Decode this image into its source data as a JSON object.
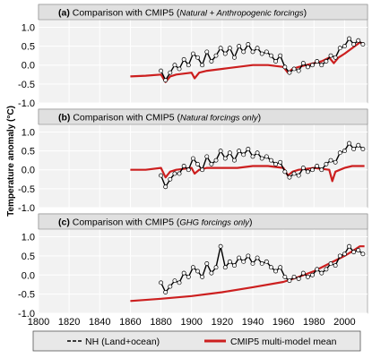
{
  "ylabel": "Temperature anomaly (°C)",
  "x_ticks": [
    "1800",
    "1820",
    "1840",
    "1860",
    "1880",
    "1900",
    "1920",
    "1940",
    "1960",
    "1980",
    "2000"
  ],
  "y_ticks": [
    "1.0",
    "0.5",
    "0.0",
    "-0.5",
    "-1.0"
  ],
  "panel_titles": [
    {
      "prefix": "(a) Comparison with CMIP5 (",
      "italic": "Natural + Anthropogenic forcings",
      "suffix": ")"
    },
    {
      "prefix": "(b) Comparison with CMIP5 (",
      "italic": "Natural forcings only",
      "suffix": ")"
    },
    {
      "prefix": "(c) Comparison with CMIP5 (",
      "italic": "GHG forcings only",
      "suffix": ")"
    }
  ],
  "legend": {
    "obs_label": "NH (Land+ocean)",
    "model_label": "CMIP5 multi-model mean",
    "placement": "bottom"
  },
  "colors": {
    "obs": "#000000",
    "model": "#cc1f1f",
    "panel_bg": "#f2f2f2",
    "title_bg": "#e0e0e0",
    "grid": "#ffffff"
  },
  "chart_data": [
    {
      "type": "line",
      "title": "(a) Comparison with CMIP5 (Natural + Anthropogenic forcings)",
      "ylabel": "Temperature anomaly (°C)",
      "xlim": [
        1800,
        2015
      ],
      "ylim": [
        -1.0,
        1.2
      ],
      "series": [
        {
          "name": "NH (Land+ocean)",
          "style": "black line with open circle markers",
          "x": [
            1880,
            1883,
            1886,
            1889,
            1892,
            1895,
            1898,
            1901,
            1904,
            1907,
            1910,
            1913,
            1916,
            1919,
            1922,
            1925,
            1928,
            1931,
            1934,
            1937,
            1940,
            1943,
            1946,
            1949,
            1952,
            1955,
            1958,
            1961,
            1964,
            1967,
            1970,
            1973,
            1976,
            1979,
            1982,
            1985,
            1988,
            1991,
            1994,
            1997,
            2000,
            2003,
            2006,
            2009,
            2012
          ],
          "y": [
            -0.15,
            -0.4,
            -0.2,
            0.0,
            -0.1,
            0.15,
            0.0,
            0.3,
            0.2,
            0.0,
            0.35,
            0.1,
            0.25,
            0.45,
            0.3,
            0.45,
            0.2,
            0.5,
            0.35,
            0.55,
            0.35,
            0.45,
            0.3,
            0.35,
            0.25,
            0.1,
            0.25,
            -0.05,
            -0.2,
            -0.1,
            -0.15,
            0.05,
            -0.05,
            0.0,
            0.1,
            0.0,
            0.1,
            0.25,
            0.2,
            0.45,
            0.5,
            0.7,
            0.55,
            0.65,
            0.55
          ]
        },
        {
          "name": "CMIP5 multi-model mean",
          "style": "red line",
          "x": [
            1860,
            1870,
            1880,
            1883,
            1886,
            1890,
            1900,
            1902,
            1905,
            1910,
            1920,
            1930,
            1940,
            1950,
            1960,
            1963,
            1966,
            1970,
            1975,
            1980,
            1985,
            1990,
            1993,
            1996,
            2000,
            2005,
            2010,
            2013
          ],
          "y": [
            -0.3,
            -0.28,
            -0.25,
            -0.45,
            -0.3,
            -0.25,
            -0.2,
            -0.35,
            -0.2,
            -0.15,
            -0.1,
            -0.05,
            0.0,
            0.0,
            -0.05,
            -0.2,
            -0.1,
            -0.05,
            0.0,
            0.05,
            0.1,
            0.2,
            0.05,
            0.2,
            0.3,
            0.45,
            0.6,
            0.55
          ]
        }
      ]
    },
    {
      "type": "line",
      "title": "(b) Comparison with CMIP5 (Natural forcings only)",
      "ylabel": "Temperature anomaly (°C)",
      "xlim": [
        1800,
        2015
      ],
      "ylim": [
        -1.0,
        1.2
      ],
      "series": [
        {
          "name": "NH (Land+ocean)",
          "style": "black line with open circle markers",
          "x": [
            1880,
            1883,
            1886,
            1889,
            1892,
            1895,
            1898,
            1901,
            1904,
            1907,
            1910,
            1913,
            1916,
            1919,
            1922,
            1925,
            1928,
            1931,
            1934,
            1937,
            1940,
            1943,
            1946,
            1949,
            1952,
            1955,
            1958,
            1961,
            1964,
            1967,
            1970,
            1973,
            1976,
            1979,
            1982,
            1985,
            1988,
            1991,
            1994,
            1997,
            2000,
            2003,
            2006,
            2009,
            2012
          ],
          "y": [
            -0.15,
            -0.45,
            -0.25,
            -0.1,
            -0.1,
            0.1,
            0.0,
            0.3,
            0.15,
            0.0,
            0.35,
            0.15,
            0.25,
            0.5,
            0.3,
            0.45,
            0.25,
            0.5,
            0.4,
            0.55,
            0.35,
            0.45,
            0.3,
            0.35,
            0.25,
            0.15,
            0.2,
            -0.05,
            -0.2,
            -0.1,
            -0.15,
            0.05,
            -0.05,
            0.0,
            0.1,
            0.0,
            0.15,
            0.25,
            0.2,
            0.45,
            0.5,
            0.7,
            0.55,
            0.65,
            0.55
          ]
        },
        {
          "name": "CMIP5 multi-model mean",
          "style": "red line",
          "x": [
            1860,
            1870,
            1880,
            1883,
            1886,
            1890,
            1900,
            1902,
            1905,
            1910,
            1920,
            1930,
            1940,
            1950,
            1960,
            1963,
            1966,
            1970,
            1980,
            1990,
            1992,
            1994,
            2000,
            2005,
            2010,
            2013
          ],
          "y": [
            0.0,
            0.0,
            0.05,
            -0.2,
            -0.05,
            0.0,
            0.05,
            -0.1,
            0.0,
            0.05,
            0.05,
            0.05,
            0.1,
            0.1,
            0.05,
            -0.15,
            -0.05,
            0.0,
            0.05,
            0.0,
            -0.3,
            -0.05,
            0.05,
            0.1,
            0.1,
            0.1
          ]
        }
      ]
    },
    {
      "type": "line",
      "title": "(c) Comparison with CMIP5 (GHG forcings only)",
      "ylabel": "Temperature anomaly (°C)",
      "xlim": [
        1800,
        2015
      ],
      "ylim": [
        -1.0,
        1.2
      ],
      "series": [
        {
          "name": "NH (Land+ocean)",
          "style": "black line with open circle markers",
          "x": [
            1880,
            1883,
            1886,
            1889,
            1892,
            1895,
            1898,
            1901,
            1904,
            1907,
            1910,
            1913,
            1916,
            1919,
            1922,
            1925,
            1928,
            1931,
            1934,
            1937,
            1940,
            1943,
            1946,
            1949,
            1952,
            1955,
            1958,
            1961,
            1964,
            1967,
            1970,
            1973,
            1976,
            1979,
            1982,
            1985,
            1988,
            1991,
            1994,
            1997,
            2000,
            2003,
            2006,
            2009,
            2012
          ],
          "y": [
            -0.2,
            -0.45,
            -0.3,
            -0.15,
            -0.2,
            0.05,
            -0.05,
            0.2,
            0.1,
            -0.05,
            0.3,
            0.05,
            0.2,
            0.75,
            0.2,
            0.35,
            0.25,
            0.45,
            0.35,
            0.5,
            0.3,
            0.45,
            0.3,
            0.35,
            0.2,
            0.1,
            0.2,
            -0.05,
            -0.15,
            -0.05,
            -0.1,
            0.05,
            -0.05,
            0.0,
            0.15,
            0.05,
            0.15,
            0.3,
            0.25,
            0.5,
            0.55,
            0.75,
            0.6,
            0.65,
            0.55
          ]
        },
        {
          "name": "CMIP5 multi-model mean",
          "style": "red line",
          "x": [
            1860,
            1880,
            1900,
            1920,
            1940,
            1960,
            1970,
            1980,
            1990,
            2000,
            2005,
            2010,
            2013
          ],
          "y": [
            -0.68,
            -0.62,
            -0.55,
            -0.45,
            -0.32,
            -0.18,
            -0.05,
            0.1,
            0.3,
            0.5,
            0.62,
            0.75,
            0.75
          ]
        }
      ]
    }
  ]
}
